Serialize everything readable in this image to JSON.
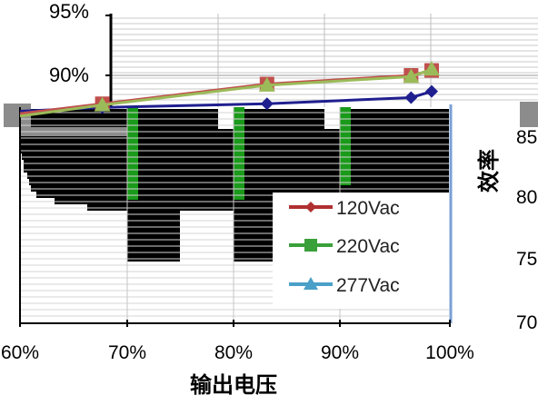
{
  "chart_data": {
    "type": "line",
    "title": "",
    "xlabel": "输出电压",
    "ylabel": "效率",
    "x_ticks": [
      "60%",
      "70%",
      "80%",
      "90%",
      "100%"
    ],
    "y_ticks_left_top": [
      "95%",
      "90%"
    ],
    "y_ticks_right": [
      "85",
      "80",
      "75",
      "70"
    ],
    "x": [
      0.6,
      0.68,
      0.84,
      0.98,
      1.0
    ],
    "series": [
      {
        "name": "120Vac",
        "marker": "diamond",
        "color": "#1f1f8f",
        "values": [
          87.1,
          87.4,
          87.7,
          88.2,
          88.7
        ]
      },
      {
        "name": "220Vac",
        "marker": "square",
        "color": "#c0504d",
        "values": [
          86.9,
          87.7,
          89.3,
          90.0,
          90.4
        ]
      },
      {
        "name": "277Vac",
        "marker": "triangle",
        "color": "#9bbb59",
        "values": [
          86.7,
          87.6,
          89.2,
          89.9,
          90.5
        ]
      }
    ],
    "legend_position": "center-right",
    "grid": true
  },
  "colors": {
    "black_band": "#000000",
    "green_bar": "#1a9a1a",
    "grey_block": "#8c8c8c",
    "axis": "#000000"
  }
}
